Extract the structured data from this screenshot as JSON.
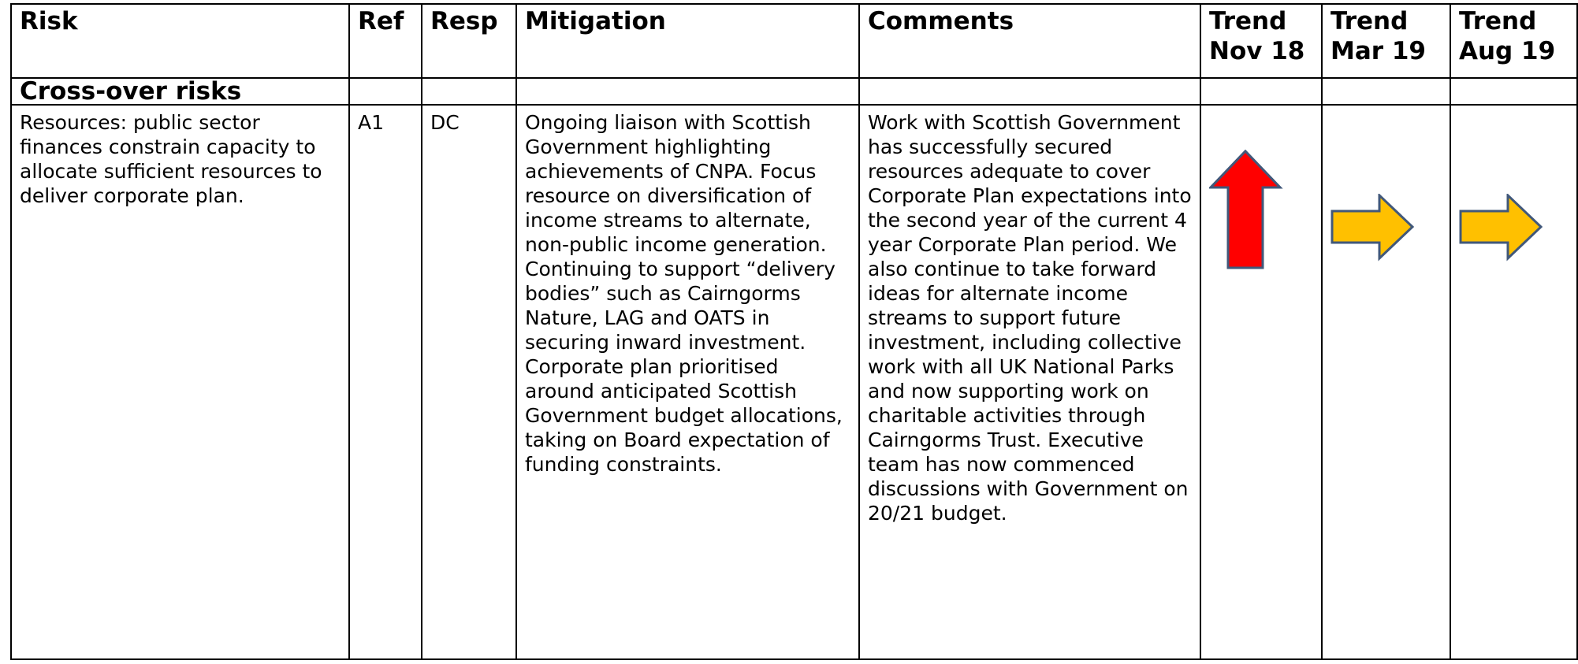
{
  "table": {
    "header": [
      "Risk",
      "Ref",
      "Resp",
      "Mitigation",
      "Comments",
      "Trend Nov 18",
      "Trend Mar 19",
      "Trend Aug 19"
    ],
    "section": "Cross-over risks",
    "row": {
      "risk": "Resources: public sector finances constrain capacity to allocate sufficient resources to deliver corporate plan.",
      "ref": "A1",
      "resp": "DC",
      "mitigation": [
        "Ongoing liaison with Scottish Government highlighting achievements of CNPA.  Focus resource on diversification of income streams to alternate, non-public income generation.",
        "Continuing to support “delivery bodies” such as Cairngorms Nature, LAG and OATS in securing inward investment.",
        "Corporate plan prioritised around anticipated Scottish Government budget allocations, taking on Board expectation of funding constraints."
      ],
      "comments": "Work with Scottish Government has successfully secured resources adequate to cover Corporate Plan expectations into the second year of the current 4 year Corporate Plan period.  We also continue to take forward ideas for alternate income streams to support future investment, including collective work with all UK National Parks and now supporting work on charitable activities through Cairngorms Trust. Executive team has now commenced discussions with Government on 20/21 budget."
    }
  }
}
